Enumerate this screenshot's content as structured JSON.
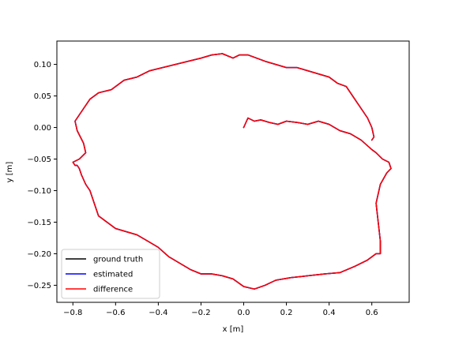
{
  "chart_data": {
    "type": "line",
    "title": "",
    "xlabel": "x [m]",
    "ylabel": "y [m]",
    "xlim": [
      -0.875,
      0.775
    ],
    "ylim": [
      -0.277,
      0.137
    ],
    "xticks": [
      -0.8,
      -0.6,
      -0.4,
      -0.2,
      0.0,
      0.2,
      0.4,
      0.6
    ],
    "xtick_labels": [
      "−0.8",
      "−0.6",
      "−0.4",
      "−0.2",
      "0.0",
      "0.2",
      "0.4",
      "0.6"
    ],
    "yticks": [
      0.1,
      0.05,
      0.0,
      -0.05,
      -0.1,
      -0.15,
      -0.2,
      -0.25
    ],
    "ytick_labels": [
      "0.10",
      "0.05",
      "0.00",
      "−0.05",
      "−0.10",
      "−0.15",
      "−0.20",
      "−0.25"
    ],
    "grid": false,
    "legend_position": "lower-left",
    "series": [
      {
        "name": "ground truth",
        "color": "#000000",
        "x": [
          0.0,
          0.02,
          0.05,
          0.08,
          0.12,
          0.16,
          0.2,
          0.25,
          0.3,
          0.35,
          0.4,
          0.45,
          0.5,
          0.55,
          0.6,
          0.62,
          0.65,
          0.68,
          0.69,
          0.67,
          0.64,
          0.62,
          0.63,
          0.64,
          0.64,
          0.62,
          0.58,
          0.52,
          0.45,
          0.38,
          0.3,
          0.22,
          0.15,
          0.1,
          0.05,
          0.0,
          -0.05,
          -0.1,
          -0.15,
          -0.2,
          -0.25,
          -0.3,
          -0.35,
          -0.4,
          -0.45,
          -0.5,
          -0.55,
          -0.6,
          -0.64,
          -0.68,
          -0.7,
          -0.72,
          -0.74,
          -0.76,
          -0.77,
          -0.78,
          -0.79,
          -0.8,
          -0.77,
          -0.74,
          -0.75,
          -0.78,
          -0.79,
          -0.78,
          -0.75,
          -0.72,
          -0.68,
          -0.62,
          -0.56,
          -0.5,
          -0.44,
          -0.38,
          -0.32,
          -0.26,
          -0.2,
          -0.15,
          -0.1,
          -0.05,
          -0.02,
          0.02,
          0.06,
          0.1,
          0.15,
          0.2,
          0.25,
          0.3,
          0.35,
          0.4,
          0.44,
          0.48,
          0.5,
          0.52,
          0.55,
          0.58,
          0.6,
          0.61,
          0.6
        ],
        "y": [
          0.0,
          0.015,
          0.01,
          0.012,
          0.008,
          0.005,
          0.01,
          0.008,
          0.005,
          0.01,
          0.005,
          -0.005,
          -0.01,
          -0.02,
          -0.035,
          -0.04,
          -0.05,
          -0.055,
          -0.065,
          -0.072,
          -0.09,
          -0.12,
          -0.15,
          -0.18,
          -0.2,
          -0.2,
          -0.21,
          -0.22,
          -0.23,
          -0.232,
          -0.235,
          -0.238,
          -0.242,
          -0.25,
          -0.256,
          -0.252,
          -0.24,
          -0.235,
          -0.232,
          -0.232,
          -0.225,
          -0.215,
          -0.205,
          -0.19,
          -0.18,
          -0.17,
          -0.165,
          -0.16,
          -0.15,
          -0.14,
          -0.12,
          -0.1,
          -0.09,
          -0.075,
          -0.065,
          -0.06,
          -0.06,
          -0.055,
          -0.05,
          -0.04,
          -0.025,
          -0.005,
          0.01,
          0.015,
          0.03,
          0.045,
          0.055,
          0.06,
          0.075,
          0.08,
          0.09,
          0.095,
          0.1,
          0.105,
          0.11,
          0.115,
          0.117,
          0.11,
          0.115,
          0.115,
          0.11,
          0.105,
          0.1,
          0.095,
          0.095,
          0.09,
          0.085,
          0.08,
          0.07,
          0.065,
          0.055,
          0.045,
          0.03,
          0.015,
          0.0,
          -0.015,
          -0.02
        ]
      },
      {
        "name": "estimated",
        "color": "#0000ff",
        "x": [
          0.0,
          0.02,
          0.05,
          0.08,
          0.12,
          0.16,
          0.2,
          0.25,
          0.3,
          0.35,
          0.4,
          0.45,
          0.5,
          0.55,
          0.6,
          0.62,
          0.65,
          0.68,
          0.69,
          0.67,
          0.64,
          0.62,
          0.63,
          0.64,
          0.64,
          0.62,
          0.58,
          0.52,
          0.45,
          0.38,
          0.3,
          0.22,
          0.15,
          0.1,
          0.05,
          0.0,
          -0.05,
          -0.1,
          -0.15,
          -0.2,
          -0.25,
          -0.3,
          -0.35,
          -0.4,
          -0.45,
          -0.5,
          -0.55,
          -0.6,
          -0.64,
          -0.68,
          -0.7,
          -0.72,
          -0.74,
          -0.76,
          -0.77,
          -0.78,
          -0.79,
          -0.8,
          -0.77,
          -0.74,
          -0.75,
          -0.78,
          -0.79,
          -0.78,
          -0.75,
          -0.72,
          -0.68,
          -0.62,
          -0.56,
          -0.5,
          -0.44,
          -0.38,
          -0.32,
          -0.26,
          -0.2,
          -0.15,
          -0.1,
          -0.05,
          -0.02,
          0.02,
          0.06,
          0.1,
          0.15,
          0.2,
          0.25,
          0.3,
          0.35,
          0.4,
          0.44,
          0.48,
          0.5,
          0.52,
          0.55,
          0.58,
          0.6,
          0.61,
          0.6
        ],
        "y": [
          0.0,
          0.015,
          0.01,
          0.012,
          0.008,
          0.005,
          0.01,
          0.008,
          0.005,
          0.01,
          0.005,
          -0.005,
          -0.01,
          -0.02,
          -0.035,
          -0.04,
          -0.05,
          -0.055,
          -0.065,
          -0.072,
          -0.09,
          -0.12,
          -0.15,
          -0.18,
          -0.2,
          -0.2,
          -0.21,
          -0.22,
          -0.23,
          -0.232,
          -0.235,
          -0.238,
          -0.242,
          -0.25,
          -0.256,
          -0.252,
          -0.24,
          -0.235,
          -0.232,
          -0.232,
          -0.225,
          -0.215,
          -0.205,
          -0.19,
          -0.18,
          -0.17,
          -0.165,
          -0.16,
          -0.15,
          -0.14,
          -0.12,
          -0.1,
          -0.09,
          -0.075,
          -0.065,
          -0.06,
          -0.06,
          -0.055,
          -0.05,
          -0.04,
          -0.025,
          -0.005,
          0.01,
          0.015,
          0.03,
          0.045,
          0.055,
          0.06,
          0.075,
          0.08,
          0.09,
          0.095,
          0.1,
          0.105,
          0.11,
          0.115,
          0.117,
          0.11,
          0.115,
          0.115,
          0.11,
          0.105,
          0.1,
          0.095,
          0.095,
          0.09,
          0.085,
          0.08,
          0.07,
          0.065,
          0.055,
          0.045,
          0.03,
          0.015,
          0.0,
          -0.015,
          -0.02
        ]
      },
      {
        "name": "difference",
        "color": "#ff0000",
        "x": [
          0.0,
          0.02,
          0.05,
          0.08,
          0.12,
          0.16,
          0.2,
          0.25,
          0.3,
          0.35,
          0.4,
          0.45,
          0.5,
          0.55,
          0.6,
          0.62,
          0.65,
          0.68,
          0.69,
          0.67,
          0.64,
          0.62,
          0.63,
          0.64,
          0.64,
          0.62,
          0.58,
          0.52,
          0.45,
          0.38,
          0.3,
          0.22,
          0.15,
          0.1,
          0.05,
          0.0,
          -0.05,
          -0.1,
          -0.15,
          -0.2,
          -0.25,
          -0.3,
          -0.35,
          -0.4,
          -0.45,
          -0.5,
          -0.55,
          -0.6,
          -0.64,
          -0.68,
          -0.7,
          -0.72,
          -0.74,
          -0.76,
          -0.77,
          -0.78,
          -0.79,
          -0.8,
          -0.77,
          -0.74,
          -0.75,
          -0.78,
          -0.79,
          -0.78,
          -0.75,
          -0.72,
          -0.68,
          -0.62,
          -0.56,
          -0.5,
          -0.44,
          -0.38,
          -0.32,
          -0.26,
          -0.2,
          -0.15,
          -0.1,
          -0.05,
          -0.02,
          0.02,
          0.06,
          0.1,
          0.15,
          0.2,
          0.25,
          0.3,
          0.35,
          0.4,
          0.44,
          0.48,
          0.5,
          0.52,
          0.55,
          0.58,
          0.6,
          0.61,
          0.6
        ],
        "y": [
          0.0,
          0.015,
          0.01,
          0.012,
          0.008,
          0.005,
          0.01,
          0.008,
          0.005,
          0.01,
          0.005,
          -0.005,
          -0.01,
          -0.02,
          -0.035,
          -0.04,
          -0.05,
          -0.055,
          -0.065,
          -0.072,
          -0.09,
          -0.12,
          -0.15,
          -0.18,
          -0.2,
          -0.2,
          -0.21,
          -0.22,
          -0.23,
          -0.232,
          -0.235,
          -0.238,
          -0.242,
          -0.25,
          -0.256,
          -0.252,
          -0.24,
          -0.235,
          -0.232,
          -0.232,
          -0.225,
          -0.215,
          -0.205,
          -0.19,
          -0.18,
          -0.17,
          -0.165,
          -0.16,
          -0.15,
          -0.14,
          -0.12,
          -0.1,
          -0.09,
          -0.075,
          -0.065,
          -0.06,
          -0.06,
          -0.055,
          -0.05,
          -0.04,
          -0.025,
          -0.005,
          0.01,
          0.015,
          0.03,
          0.045,
          0.055,
          0.06,
          0.075,
          0.08,
          0.09,
          0.095,
          0.1,
          0.105,
          0.11,
          0.115,
          0.117,
          0.11,
          0.115,
          0.115,
          0.11,
          0.105,
          0.1,
          0.095,
          0.095,
          0.09,
          0.085,
          0.08,
          0.07,
          0.065,
          0.055,
          0.045,
          0.03,
          0.015,
          0.0,
          -0.015,
          -0.02
        ]
      }
    ]
  }
}
